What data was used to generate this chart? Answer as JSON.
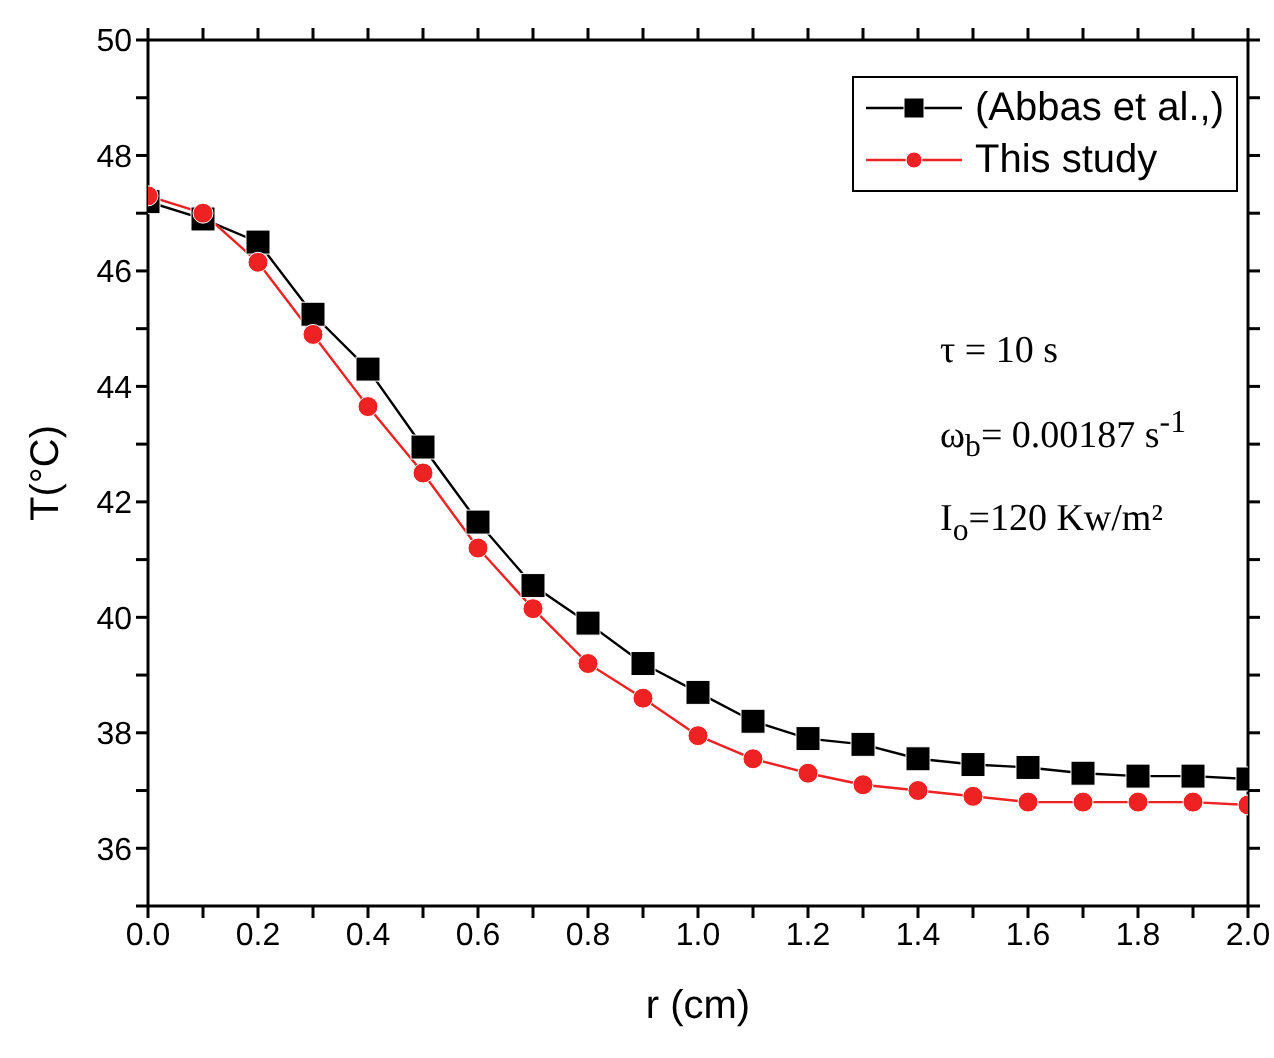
{
  "chart_data": {
    "type": "line",
    "xlabel": "r (cm)",
    "ylabel": "T(°C)",
    "x": [
      0,
      0.1,
      0.2,
      0.3,
      0.4,
      0.5,
      0.6,
      0.7,
      0.8,
      0.9,
      1.0,
      1.1,
      1.2,
      1.3,
      1.4,
      1.5,
      1.6,
      1.7,
      1.8,
      1.9,
      2.0
    ],
    "series": [
      {
        "name": "(Abbas et al.,)",
        "color": "#000000",
        "marker": "square",
        "values": [
          47.2,
          46.9,
          46.5,
          45.25,
          44.3,
          42.95,
          41.65,
          40.55,
          39.9,
          39.2,
          38.7,
          38.2,
          37.9,
          37.8,
          37.55,
          37.45,
          37.4,
          37.3,
          37.25,
          37.25,
          37.2
        ]
      },
      {
        "name": "This study",
        "color": "#ee2222",
        "marker": "circle",
        "values": [
          47.3,
          47.0,
          46.15,
          44.9,
          43.65,
          42.5,
          41.2,
          40.15,
          39.2,
          38.6,
          37.95,
          37.55,
          37.3,
          37.1,
          37.0,
          36.9,
          36.8,
          36.8,
          36.8,
          36.8,
          36.75
        ]
      }
    ],
    "xlim": [
      0,
      2.0
    ],
    "xticks": [
      {
        "value": 0,
        "label": "0.0"
      },
      {
        "value": 0.1,
        "label": null
      },
      0.2,
      {
        "value": 0.3,
        "label": null
      },
      0.4,
      {
        "value": 0.5,
        "label": null
      },
      0.6,
      {
        "value": 0.7,
        "label": null
      },
      0.8,
      {
        "value": 0.9,
        "label": null
      },
      {
        "value": 1.0,
        "label": "1.0"
      },
      {
        "value": 1.1,
        "label": null
      },
      1.2,
      {
        "value": 1.3,
        "label": null
      },
      1.4,
      {
        "value": 1.5,
        "label": null
      },
      1.6,
      {
        "value": 1.7,
        "label": null
      },
      1.8,
      {
        "value": 1.9,
        "label": null
      },
      {
        "value": 2.0,
        "label": "2.0"
      }
    ],
    "ylim": [
      35,
      50
    ],
    "yticks": [
      {
        "value": 35,
        "label": null
      },
      36,
      {
        "value": 37,
        "label": null
      },
      38,
      {
        "value": 39,
        "label": null
      },
      40,
      {
        "value": 41,
        "label": null
      },
      42,
      {
        "value": 43,
        "label": null
      },
      44,
      {
        "value": 45,
        "label": null
      },
      46,
      {
        "value": 47,
        "label": null
      },
      48,
      {
        "value": 49,
        "label": null
      },
      50
    ],
    "annotations": [
      "τ = 10 s",
      "ω$_{b}$= 0.00187 s$^{-1}$",
      "I$_{o}$=120  Kw/m²"
    ],
    "legend": "top right",
    "grid": false,
    "line_style": "solid"
  }
}
